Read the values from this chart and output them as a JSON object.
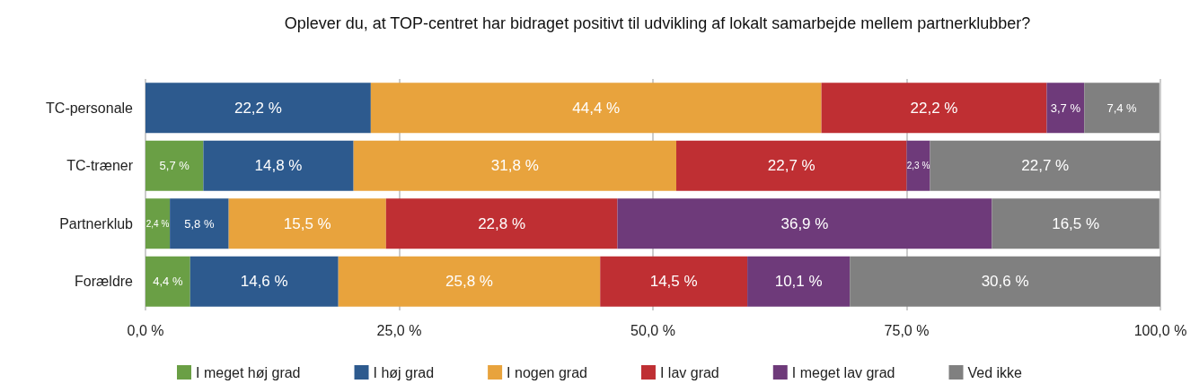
{
  "chart_data": {
    "type": "bar",
    "orientation": "horizontal",
    "stacked": true,
    "title": "Oplever du, at TOP-centret har bidraget positivt til udvikling af lokalt samarbejde mellem partnerklubber?",
    "categories": [
      "TC-personale",
      "TC-træner",
      "Partnerklub",
      "Forældre"
    ],
    "series": [
      {
        "name": "I meget høj grad",
        "color": "#6a9f45",
        "values": [
          0,
          5.7,
          2.4,
          4.4
        ],
        "value_labels": [
          null,
          "5,7 %",
          "2,4 %",
          "4,4 %"
        ]
      },
      {
        "name": "I høj grad",
        "color": "#2d5a8e",
        "values": [
          22.2,
          14.8,
          5.8,
          14.6
        ],
        "value_labels": [
          "22,2 %",
          "14,8 %",
          "5,8 %",
          "14,6 %"
        ]
      },
      {
        "name": "I nogen grad",
        "color": "#e8a33d",
        "values": [
          44.4,
          31.8,
          15.5,
          25.8
        ],
        "value_labels": [
          "44,4 %",
          "31,8 %",
          "15,5 %",
          "25,8 %"
        ]
      },
      {
        "name": "I lav grad",
        "color": "#bf2f33",
        "values": [
          22.2,
          22.7,
          22.8,
          14.5
        ],
        "value_labels": [
          "22,2 %",
          "22,7 %",
          "22,8 %",
          "14,5 %"
        ]
      },
      {
        "name": "I meget lav grad",
        "color": "#6e3a7a",
        "values": [
          3.7,
          2.3,
          36.9,
          10.1
        ],
        "value_labels": [
          "3,7 %",
          "2,3 %",
          "36,9 %",
          "10,1 %"
        ]
      },
      {
        "name": "Ved ikke",
        "color": "#808080",
        "values": [
          7.4,
          22.7,
          16.5,
          30.6
        ],
        "value_labels": [
          "7,4 %",
          "22,7 %",
          "16,5 %",
          "30,6 %"
        ]
      }
    ],
    "xlim": [
      0,
      100
    ],
    "xticks": [
      {
        "value": 0,
        "label": "0,0 %"
      },
      {
        "value": 25,
        "label": "25,0 %"
      },
      {
        "value": 50,
        "label": "50,0 %"
      },
      {
        "value": 75,
        "label": "75,0 %"
      },
      {
        "value": 100,
        "label": "100,0 %"
      }
    ],
    "grid": "x",
    "legend": "bottom"
  }
}
